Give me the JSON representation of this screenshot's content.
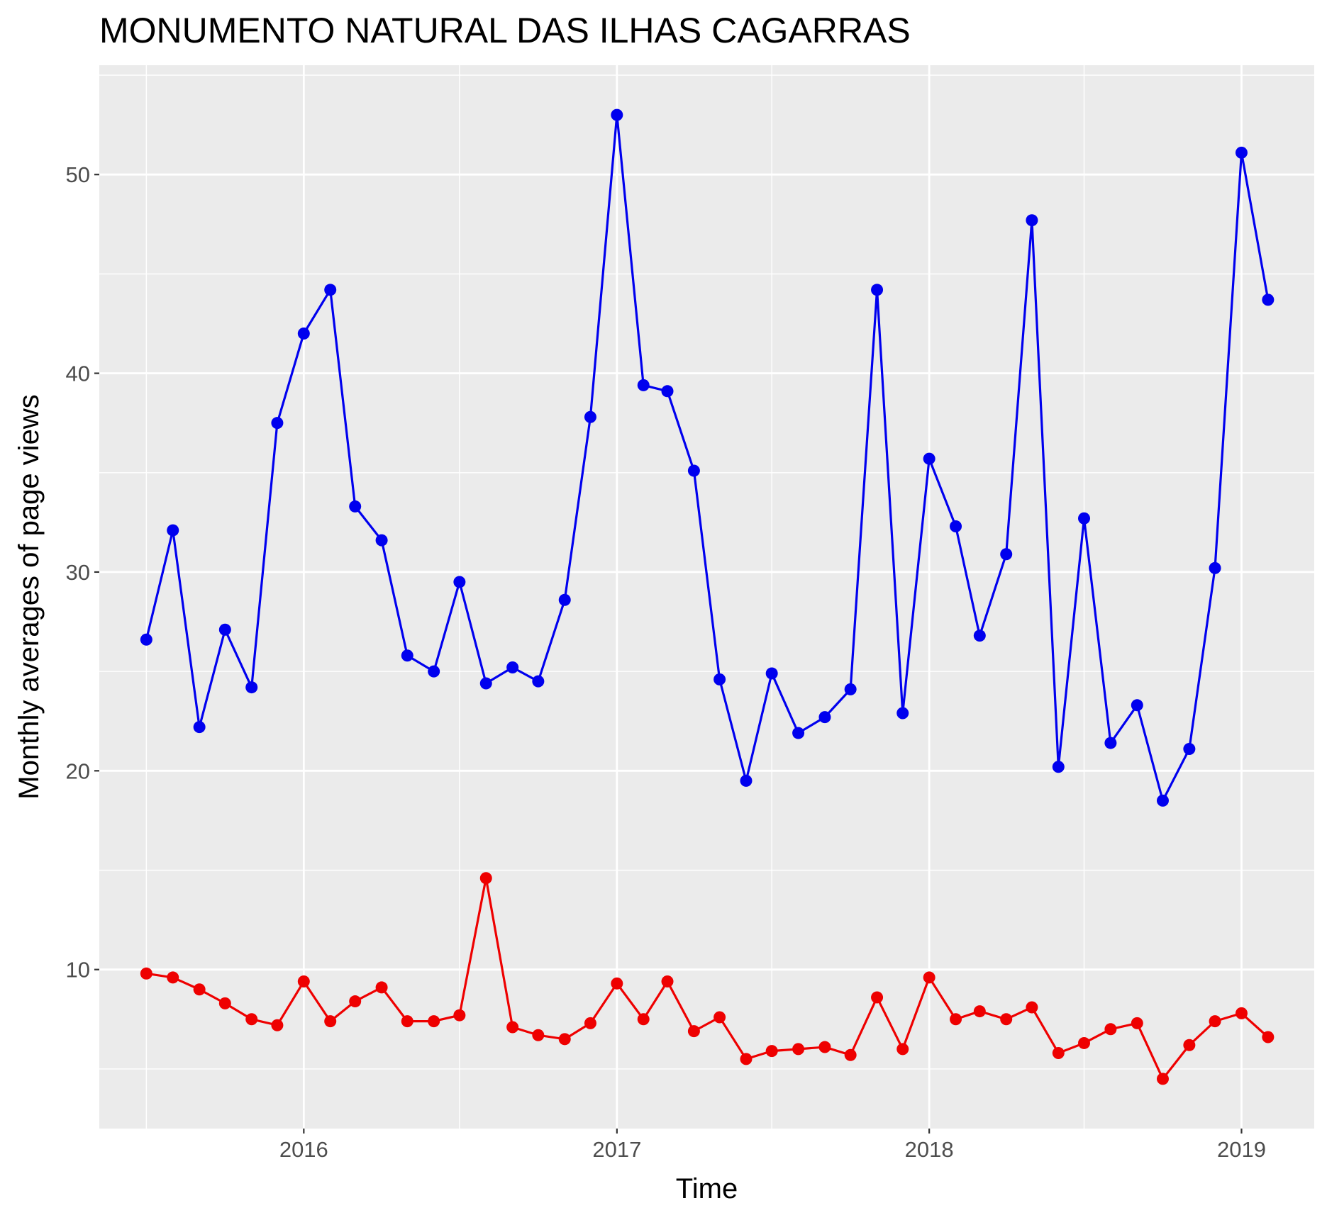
{
  "chart_data": {
    "type": "line",
    "title": "MONUMENTO NATURAL DAS ILHAS CAGARRAS",
    "xlabel": "Time",
    "ylabel": "Monthly averages of page views",
    "x": [
      "2015-07",
      "2015-08",
      "2015-09",
      "2015-10",
      "2015-11",
      "2015-12",
      "2016-01",
      "2016-02",
      "2016-03",
      "2016-04",
      "2016-05",
      "2016-06",
      "2016-07",
      "2016-08",
      "2016-09",
      "2016-10",
      "2016-11",
      "2016-12",
      "2017-01",
      "2017-02",
      "2017-03",
      "2017-04",
      "2017-05",
      "2017-06",
      "2017-07",
      "2017-08",
      "2017-09",
      "2017-10",
      "2017-11",
      "2017-12",
      "2018-01",
      "2018-02",
      "2018-03",
      "2018-04",
      "2018-05",
      "2018-06",
      "2018-07",
      "2018-08",
      "2018-09",
      "2018-10",
      "2018-11",
      "2018-12",
      "2019-01",
      "2019-02"
    ],
    "xlim": [
      "2015-05-07",
      "2019-03-27"
    ],
    "ylim": [
      2.0,
      55.5
    ],
    "x_ticks": [
      "2016",
      "2017",
      "2018",
      "2019"
    ],
    "y_ticks": [
      10,
      20,
      30,
      40,
      50
    ],
    "grid": true,
    "legend": "none",
    "series": [
      {
        "color": "#0000ee",
        "values": [
          26.6,
          32.1,
          22.2,
          27.1,
          24.2,
          37.5,
          42.0,
          44.2,
          33.3,
          31.6,
          25.8,
          25.0,
          29.5,
          24.4,
          25.2,
          24.5,
          28.6,
          37.8,
          53.0,
          39.4,
          39.1,
          35.1,
          24.6,
          19.5,
          24.9,
          21.9,
          22.7,
          24.1,
          44.2,
          22.9,
          35.7,
          32.3,
          26.8,
          30.9,
          47.7,
          20.2,
          32.7,
          21.4,
          23.3,
          18.5,
          21.1,
          30.2,
          51.1,
          43.7
        ]
      },
      {
        "color": "#ee0000",
        "values": [
          9.8,
          9.6,
          9.0,
          8.3,
          7.5,
          7.2,
          9.4,
          7.4,
          8.4,
          9.1,
          7.4,
          7.4,
          7.7,
          14.6,
          7.1,
          6.7,
          6.5,
          7.3,
          9.3,
          7.5,
          9.4,
          6.9,
          7.6,
          5.5,
          5.9,
          6.0,
          6.1,
          5.7,
          8.6,
          6.0,
          9.6,
          7.5,
          7.9,
          7.5,
          8.1,
          5.8,
          6.3,
          7.0,
          7.3,
          4.5,
          6.2,
          7.4,
          7.8,
          6.6
        ]
      }
    ]
  }
}
